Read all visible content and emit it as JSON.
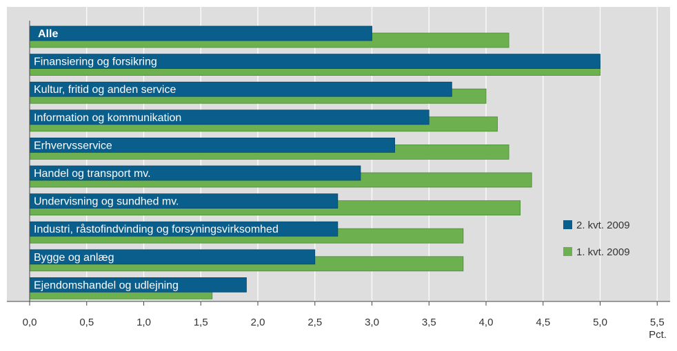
{
  "chart_data": {
    "type": "bar",
    "orientation": "horizontal",
    "categories": [
      "Alle",
      "Finansiering og forsikring",
      "Kultur, fritid og anden service",
      "Information og kommunikation",
      "Erhvervsservice",
      "Handel og transport mv.",
      "Undervisning og sundhed mv.",
      "Industri, råstofindvinding og forsyningsvirksomhed",
      "Bygge og anlæg",
      "Ejendomshandel og udlejning"
    ],
    "series": [
      {
        "name": "2. kvt. 2009",
        "color": "#0a5e8c",
        "values": [
          3.0,
          5.0,
          3.7,
          3.5,
          3.2,
          2.9,
          2.7,
          2.7,
          2.5,
          1.9
        ]
      },
      {
        "name": "1. kvt. 2009",
        "color": "#6db04f",
        "values": [
          4.2,
          5.0,
          4.0,
          4.1,
          4.2,
          4.4,
          4.3,
          3.8,
          3.8,
          1.6
        ]
      }
    ],
    "xlim": [
      0,
      5.5
    ],
    "xticks": [
      "0,0",
      "0,5",
      "1,0",
      "1,5",
      "2,0",
      "2,5",
      "3,0",
      "3,5",
      "4,0",
      "4,5",
      "5,0",
      "5,5"
    ],
    "unit_label": "Pct.",
    "legend_position": "right",
    "grid": true,
    "colors": {
      "plot_background": "#dedede",
      "gridline": "#ffffff",
      "axis": "#444444"
    }
  }
}
